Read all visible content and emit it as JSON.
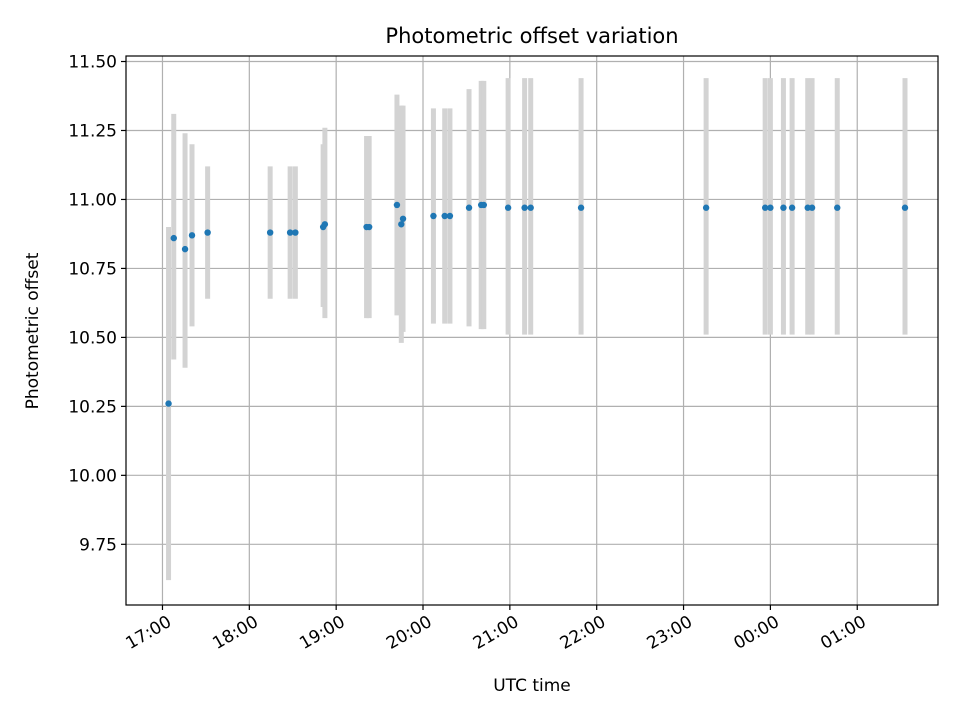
{
  "chart_data": {
    "type": "scatter",
    "title": "Photometric offset variation",
    "xlabel": "UTC time",
    "ylabel": "Photometric offset",
    "x_is_time": true,
    "x_start_time": "16:35",
    "x_end_time": "01:55",
    "xlim_hours": [
      16.58,
      25.93
    ],
    "ylim": [
      9.53,
      11.52
    ],
    "grid": true,
    "x_ticks": [
      {
        "label": "17:00",
        "hour": 17
      },
      {
        "label": "18:00",
        "hour": 18
      },
      {
        "label": "19:00",
        "hour": 19
      },
      {
        "label": "20:00",
        "hour": 20
      },
      {
        "label": "21:00",
        "hour": 21
      },
      {
        "label": "22:00",
        "hour": 22
      },
      {
        "label": "23:00",
        "hour": 23
      },
      {
        "label": "00:00",
        "hour": 24
      },
      {
        "label": "01:00",
        "hour": 25
      }
    ],
    "y_ticks": [
      {
        "label": "9.75",
        "value": 9.75
      },
      {
        "label": "10.00",
        "value": 10.0
      },
      {
        "label": "10.25",
        "value": 10.25
      },
      {
        "label": "10.50",
        "value": 10.5
      },
      {
        "label": "10.75",
        "value": 10.75
      },
      {
        "label": "11.00",
        "value": 11.0
      },
      {
        "label": "11.25",
        "value": 11.25
      },
      {
        "label": "11.50",
        "value": 11.5
      }
    ],
    "point_color": "#1f77b4",
    "errorbar_color": "#d3d3d3",
    "points": [
      {
        "time": "17:04",
        "hour": 17.07,
        "y": 10.26,
        "low": 9.62,
        "high": 10.9
      },
      {
        "time": "17:08",
        "hour": 17.13,
        "y": 10.86,
        "low": 10.42,
        "high": 11.31
      },
      {
        "time": "17:16",
        "hour": 17.26,
        "y": 10.82,
        "low": 10.39,
        "high": 11.24
      },
      {
        "time": "17:20",
        "hour": 17.34,
        "y": 10.87,
        "low": 10.54,
        "high": 11.2
      },
      {
        "time": "17:31",
        "hour": 17.52,
        "y": 10.88,
        "low": 10.64,
        "high": 11.12
      },
      {
        "time": "18:14",
        "hour": 18.24,
        "y": 10.88,
        "low": 10.64,
        "high": 11.12
      },
      {
        "time": "18:28",
        "hour": 18.47,
        "y": 10.88,
        "low": 10.64,
        "high": 11.12
      },
      {
        "time": "18:32",
        "hour": 18.53,
        "y": 10.88,
        "low": 10.64,
        "high": 11.12
      },
      {
        "time": "18:51",
        "hour": 18.85,
        "y": 10.9,
        "low": 10.61,
        "high": 11.2
      },
      {
        "time": "18:52",
        "hour": 18.87,
        "y": 10.91,
        "low": 10.57,
        "high": 11.26
      },
      {
        "time": "19:21",
        "hour": 19.35,
        "y": 10.9,
        "low": 10.57,
        "high": 11.23
      },
      {
        "time": "19:23",
        "hour": 19.38,
        "y": 10.9,
        "low": 10.57,
        "high": 11.23
      },
      {
        "time": "19:42",
        "hour": 19.7,
        "y": 10.98,
        "low": 10.58,
        "high": 11.38
      },
      {
        "time": "19:45",
        "hour": 19.75,
        "y": 10.91,
        "low": 10.48,
        "high": 11.34
      },
      {
        "time": "19:46",
        "hour": 19.77,
        "y": 10.93,
        "low": 10.52,
        "high": 11.34
      },
      {
        "time": "20:07",
        "hour": 20.12,
        "y": 10.94,
        "low": 10.55,
        "high": 11.33
      },
      {
        "time": "20:15",
        "hour": 20.25,
        "y": 10.94,
        "low": 10.55,
        "high": 11.33
      },
      {
        "time": "20:19",
        "hour": 20.31,
        "y": 10.94,
        "low": 10.55,
        "high": 11.33
      },
      {
        "time": "20:32",
        "hour": 20.53,
        "y": 10.97,
        "low": 10.54,
        "high": 11.4
      },
      {
        "time": "20:40",
        "hour": 20.67,
        "y": 10.98,
        "low": 10.53,
        "high": 11.43
      },
      {
        "time": "20:42",
        "hour": 20.7,
        "y": 10.98,
        "low": 10.53,
        "high": 11.43
      },
      {
        "time": "20:59",
        "hour": 20.98,
        "y": 10.97,
        "low": 10.51,
        "high": 11.44
      },
      {
        "time": "21:10",
        "hour": 21.17,
        "y": 10.97,
        "low": 10.51,
        "high": 11.44
      },
      {
        "time": "21:14",
        "hour": 21.24,
        "y": 10.97,
        "low": 10.51,
        "high": 11.44
      },
      {
        "time": "21:49",
        "hour": 21.82,
        "y": 10.97,
        "low": 10.51,
        "high": 11.44
      },
      {
        "time": "23:16",
        "hour": 23.26,
        "y": 10.97,
        "low": 10.51,
        "high": 11.44
      },
      {
        "time": "23:56",
        "hour": 23.94,
        "y": 10.97,
        "low": 10.51,
        "high": 11.44
      },
      {
        "time": "24:00",
        "hour": 24.0,
        "y": 10.97,
        "low": 10.51,
        "high": 11.44
      },
      {
        "time": "00:09",
        "hour": 24.15,
        "y": 10.97,
        "low": 10.51,
        "high": 11.44
      },
      {
        "time": "00:15",
        "hour": 24.25,
        "y": 10.97,
        "low": 10.51,
        "high": 11.44
      },
      {
        "time": "00:26",
        "hour": 24.43,
        "y": 10.97,
        "low": 10.51,
        "high": 11.44
      },
      {
        "time": "00:29",
        "hour": 24.48,
        "y": 10.97,
        "low": 10.51,
        "high": 11.44
      },
      {
        "time": "00:46",
        "hour": 24.77,
        "y": 10.97,
        "low": 10.51,
        "high": 11.44
      },
      {
        "time": "01:33",
        "hour": 25.55,
        "y": 10.97,
        "low": 10.51,
        "high": 11.44
      }
    ]
  }
}
